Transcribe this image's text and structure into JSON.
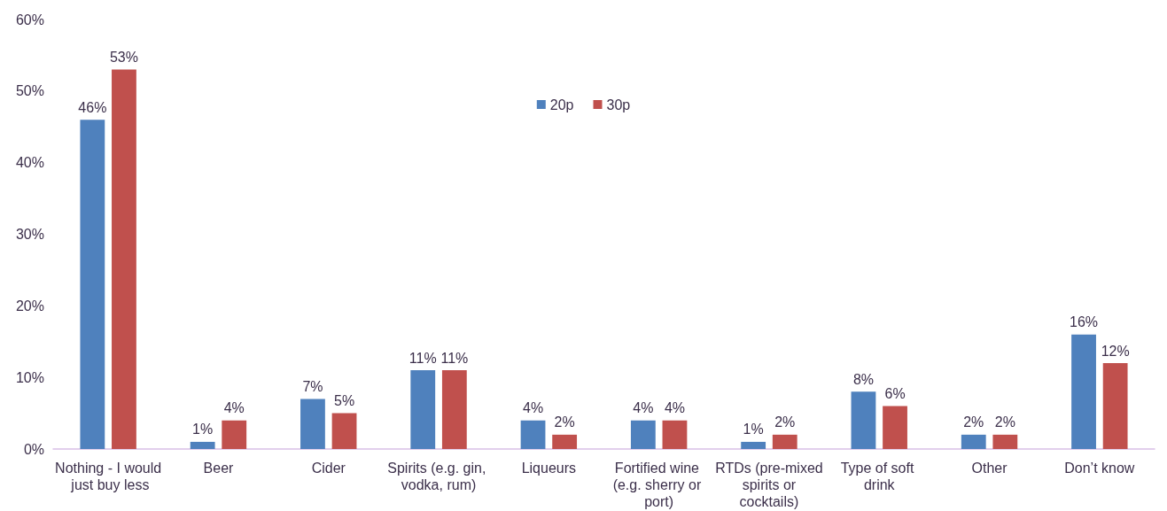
{
  "chart_data": {
    "type": "bar",
    "categories": [
      "Nothing - I would just buy less",
      "Beer",
      "Cider",
      "Spirits (e.g. gin, vodka, rum)",
      "Liqueurs",
      "Fortified wine (e.g. sherry or port)",
      "RTDs (pre-mixed spirits or cocktails)",
      "Type of soft drink",
      "Other",
      "Don’t know"
    ],
    "series": [
      {
        "name": "20p",
        "color": "#4f81bd",
        "values": [
          46,
          1,
          7,
          11,
          4,
          4,
          1,
          8,
          2,
          16
        ],
        "value_labels": [
          "46%",
          "1%",
          "7%",
          "11%",
          "4%",
          "4%",
          "1%",
          "8%",
          "2%",
          "16%"
        ]
      },
      {
        "name": "30p",
        "color": "#c0504d",
        "values": [
          53,
          4,
          5,
          11,
          2,
          4,
          2,
          6,
          2,
          12
        ],
        "value_labels": [
          "53%",
          "4%",
          "5%",
          "11%",
          "2%",
          "4%",
          "2%",
          "6%",
          "2%",
          "12%"
        ]
      }
    ],
    "ylim": [
      0,
      60
    ],
    "yticks": [
      {
        "value": 0,
        "label": "0%"
      },
      {
        "value": 10,
        "label": "10%"
      },
      {
        "value": 20,
        "label": "20%"
      },
      {
        "value": 30,
        "label": "30%"
      },
      {
        "value": 40,
        "label": "40%"
      },
      {
        "value": 50,
        "label": "50%"
      },
      {
        "value": 60,
        "label": "60%"
      }
    ],
    "grid": false,
    "legend": "top"
  }
}
